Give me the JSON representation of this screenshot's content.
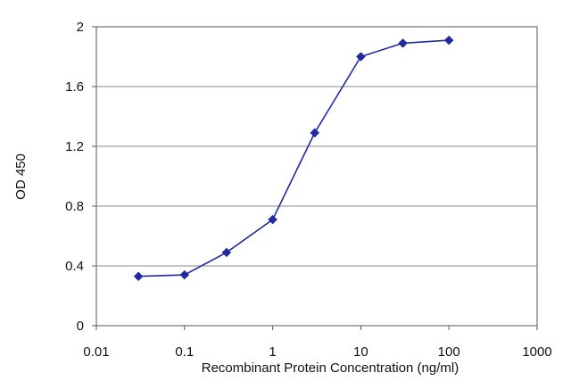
{
  "chart_data": {
    "type": "line",
    "title": "",
    "xlabel": "Recombinant Protein Concentration (ng/ml)",
    "ylabel": "OD 450",
    "x_scale": "log",
    "xlim": [
      0.01,
      1000
    ],
    "ylim": [
      0,
      2
    ],
    "x_ticks": [
      0.01,
      0.1,
      1,
      10,
      100,
      1000
    ],
    "x_tick_labels": [
      "0.01",
      "0.1",
      "1",
      "10",
      "100",
      "1000"
    ],
    "y_ticks": [
      0,
      0.4,
      0.8,
      1.2,
      1.6,
      2
    ],
    "y_tick_labels": [
      "0",
      "0.4",
      "0.8",
      "1.2",
      "1.6",
      "2"
    ],
    "grid": "horizontal",
    "legend": "none",
    "series": [
      {
        "color": "#1f2a9e",
        "marker": "diamond",
        "x": [
          0.03,
          0.1,
          0.3,
          1,
          3,
          10,
          30,
          100
        ],
        "y": [
          0.33,
          0.34,
          0.49,
          0.71,
          1.29,
          1.8,
          1.89,
          1.91
        ]
      }
    ]
  }
}
